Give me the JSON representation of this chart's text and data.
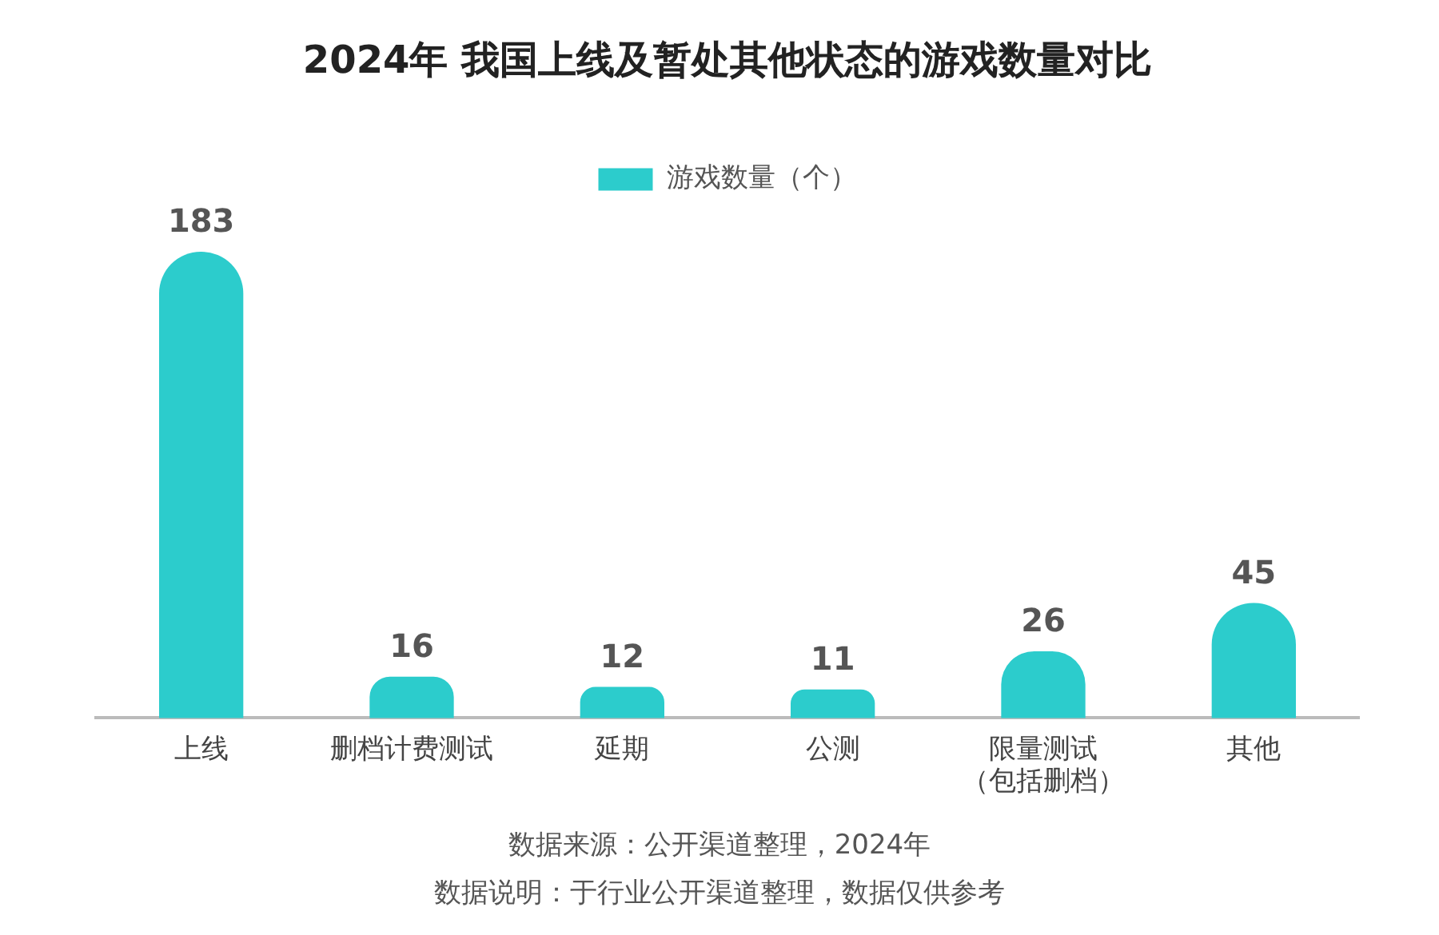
{
  "chart_data": {
    "type": "bar",
    "title": "2024年 我国上线及暂处其他状态的游戏数量对比",
    "categories": [
      "上线",
      "删档计费测试",
      "延期",
      "公测",
      "限量测试（包括删档）",
      "其他"
    ],
    "series": [
      {
        "name": "游戏数量（个）",
        "color": "#2ccccc",
        "values": [
          183,
          16,
          12,
          11,
          26,
          45
        ]
      }
    ],
    "data_labels": true,
    "legend": "top",
    "grid": false,
    "annotations": [
      "数据来源：公开渠道整理，2024年",
      "数据说明：于行业公开渠道整理，数据仅供参考"
    ]
  }
}
